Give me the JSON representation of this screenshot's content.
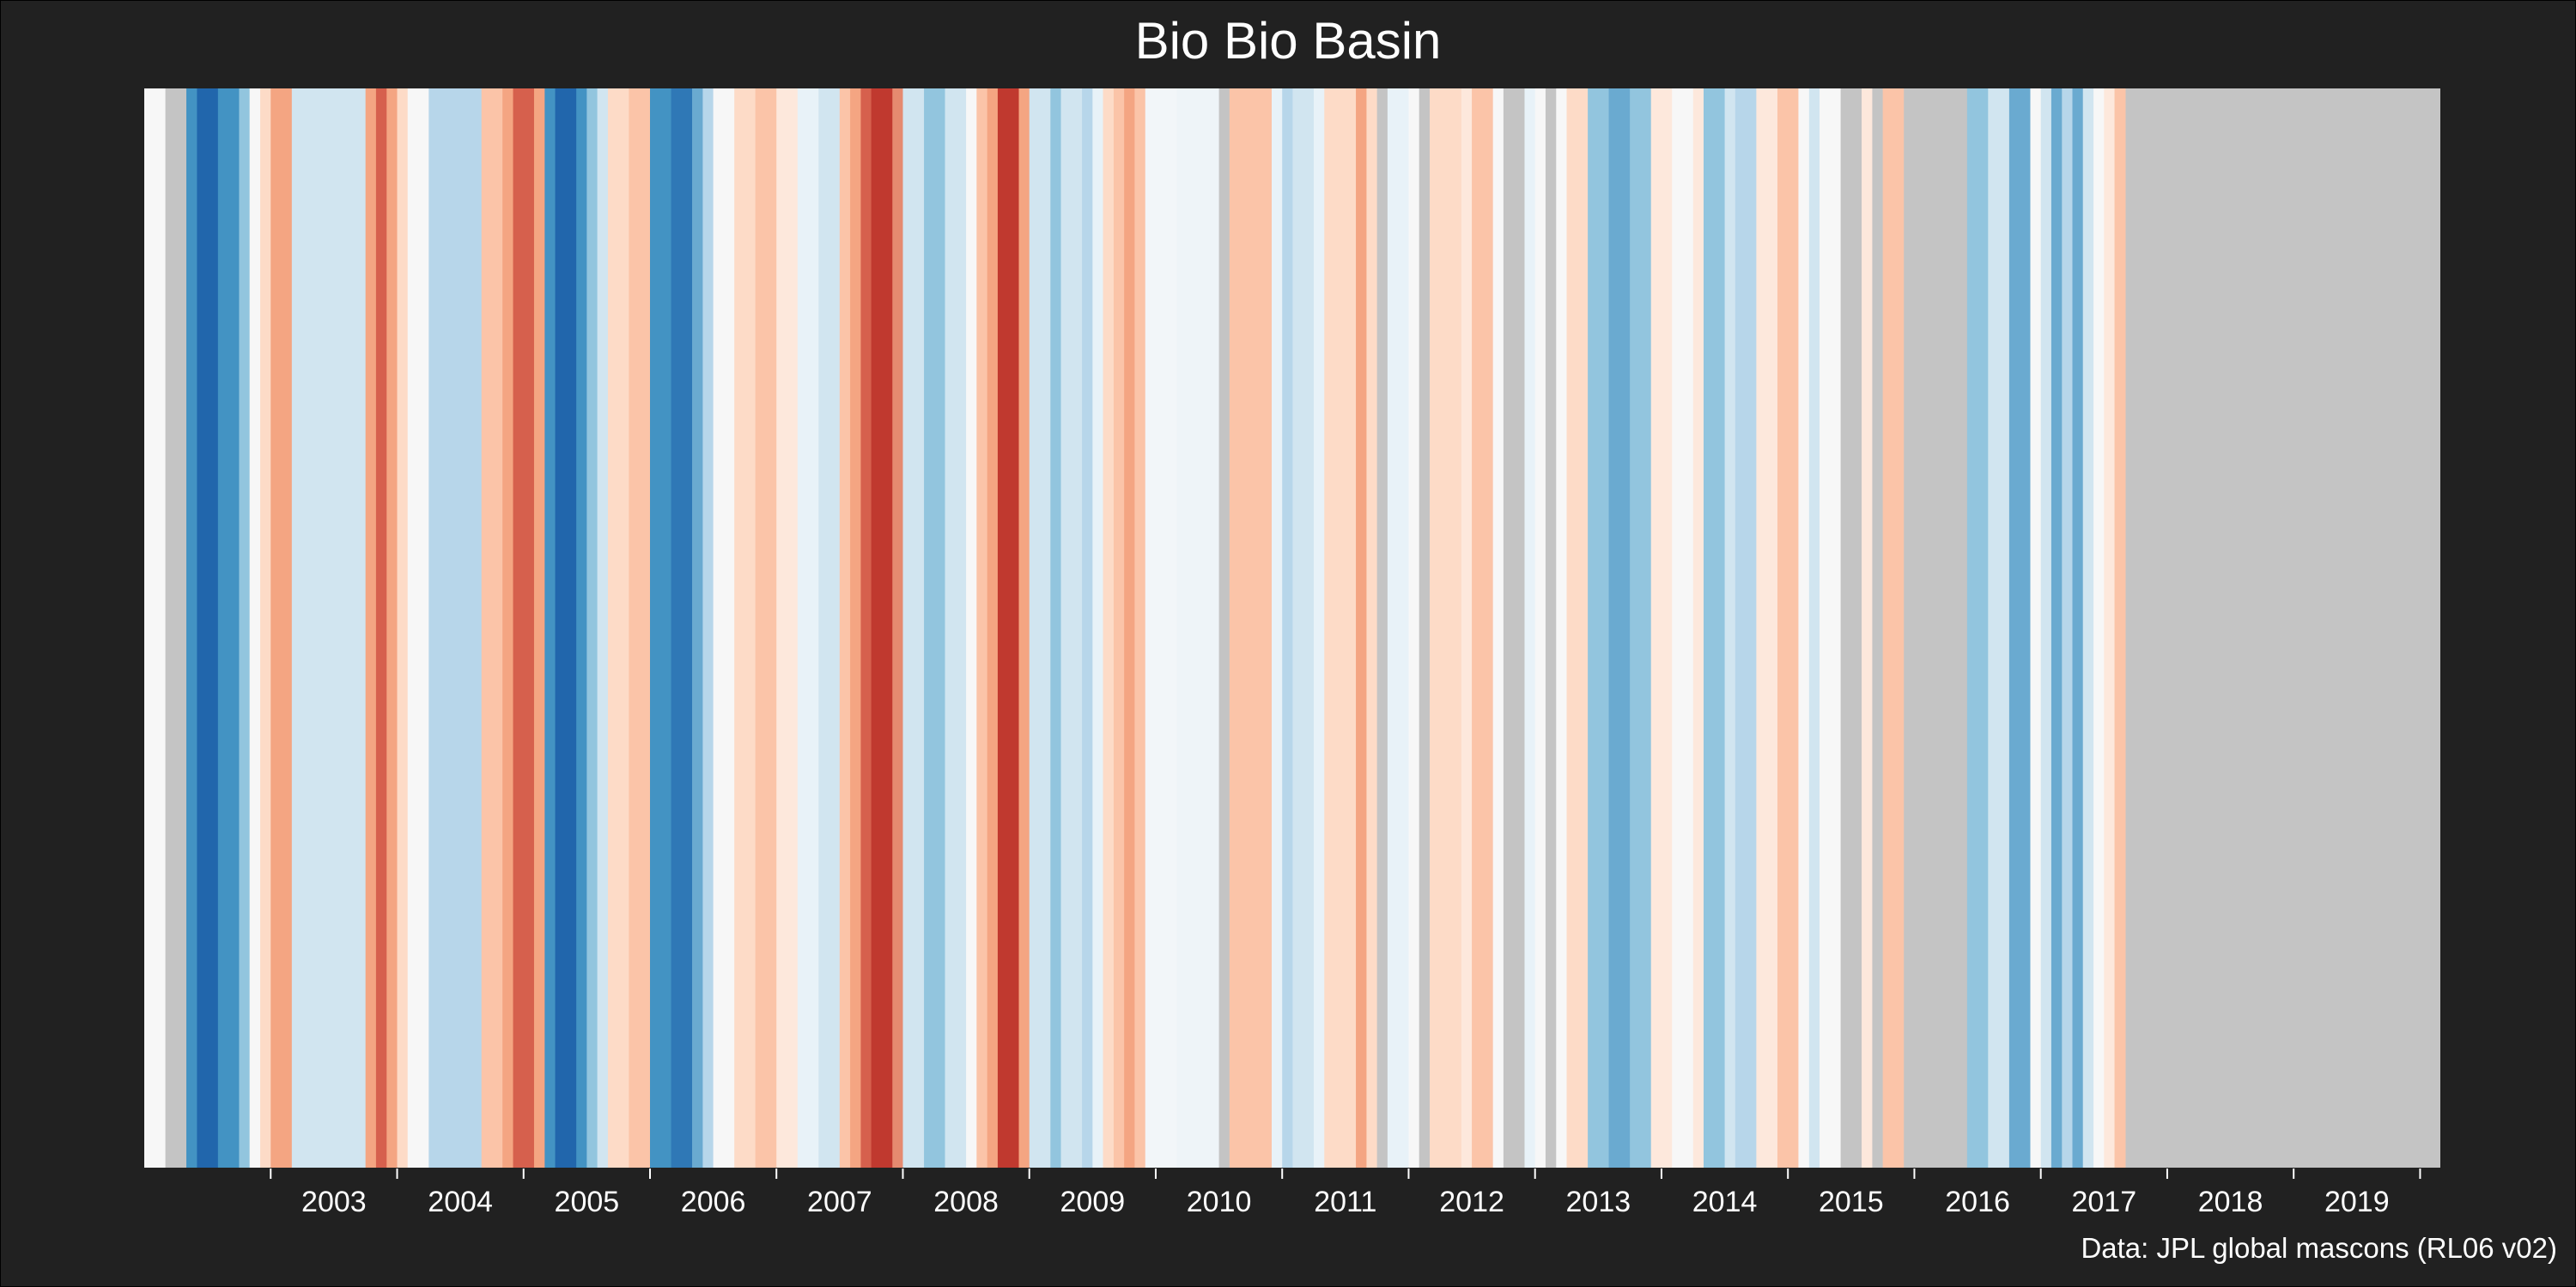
{
  "chart_data": {
    "type": "heatmap",
    "title": "Bio Bio Basin",
    "caption": "Data: JPL global mascons (RL06 v02)",
    "xlabel": "",
    "ylabel": "",
    "x_range": [
      2002.0,
      2020.16
    ],
    "x_ticks": [
      2003,
      2004,
      2005,
      2006,
      2007,
      2008,
      2009,
      2010,
      2011,
      2012,
      2013,
      2014,
      2015,
      2016,
      2017,
      2018,
      2019
    ],
    "legend": "none",
    "grid": false,
    "missing_color": "#c4c4c4",
    "palette": [
      "#08519c",
      "#2171b5",
      "#4292c6",
      "#6baed6",
      "#9ecae1",
      "#c6dbef",
      "#deebf7",
      "#f7fbff",
      "#fff5f0",
      "#fee0d2",
      "#fcbba1",
      "#fc9272",
      "#ef3b2c",
      "#cb181d",
      "#a50f15"
    ],
    "stripes": [
      {
        "start": 2002.0,
        "end": 2002.167,
        "color": "#f7f7f7"
      },
      {
        "start": 2002.167,
        "end": 2002.333,
        "color": "#c4c4c4"
      },
      {
        "start": 2002.333,
        "end": 2002.417,
        "color": "#4393c3"
      },
      {
        "start": 2002.417,
        "end": 2002.583,
        "color": "#2166ac"
      },
      {
        "start": 2002.583,
        "end": 2002.75,
        "color": "#4393c3"
      },
      {
        "start": 2002.75,
        "end": 2002.833,
        "color": "#92c5de"
      },
      {
        "start": 2002.833,
        "end": 2002.917,
        "color": "#f7f7f7"
      },
      {
        "start": 2002.917,
        "end": 2003.0,
        "color": "#fddbc7"
      },
      {
        "start": 2003.0,
        "end": 2003.167,
        "color": "#f4a582"
      },
      {
        "start": 2003.167,
        "end": 2003.333,
        "color": "#d1e5f0"
      },
      {
        "start": 2003.333,
        "end": 2003.5,
        "color": "#d1e5f0"
      },
      {
        "start": 2003.5,
        "end": 2003.75,
        "color": "#d1e5f0"
      },
      {
        "start": 2003.75,
        "end": 2003.833,
        "color": "#f4a582"
      },
      {
        "start": 2003.833,
        "end": 2003.917,
        "color": "#d6604d"
      },
      {
        "start": 2003.917,
        "end": 2004.0,
        "color": "#f4a582"
      },
      {
        "start": 2004.0,
        "end": 2004.083,
        "color": "#fddbc7"
      },
      {
        "start": 2004.083,
        "end": 2004.25,
        "color": "#f7f7f7"
      },
      {
        "start": 2004.25,
        "end": 2004.5,
        "color": "#b7d6ea"
      },
      {
        "start": 2004.5,
        "end": 2004.667,
        "color": "#b7d6ea"
      },
      {
        "start": 2004.667,
        "end": 2004.833,
        "color": "#fbc4a8"
      },
      {
        "start": 2004.833,
        "end": 2004.917,
        "color": "#f4a582"
      },
      {
        "start": 2004.917,
        "end": 2005.083,
        "color": "#d6604d"
      },
      {
        "start": 2005.083,
        "end": 2005.167,
        "color": "#f4a582"
      },
      {
        "start": 2005.167,
        "end": 2005.25,
        "color": "#4393c3"
      },
      {
        "start": 2005.25,
        "end": 2005.417,
        "color": "#2166ac"
      },
      {
        "start": 2005.417,
        "end": 2005.5,
        "color": "#4393c3"
      },
      {
        "start": 2005.5,
        "end": 2005.583,
        "color": "#92c5de"
      },
      {
        "start": 2005.583,
        "end": 2005.667,
        "color": "#d1e5f0"
      },
      {
        "start": 2005.667,
        "end": 2005.833,
        "color": "#fddbc7"
      },
      {
        "start": 2005.833,
        "end": 2006.0,
        "color": "#fbc4a8"
      },
      {
        "start": 2006.0,
        "end": 2006.167,
        "color": "#4393c3"
      },
      {
        "start": 2006.167,
        "end": 2006.333,
        "color": "#2f78b6"
      },
      {
        "start": 2006.333,
        "end": 2006.417,
        "color": "#6aaad0"
      },
      {
        "start": 2006.417,
        "end": 2006.5,
        "color": "#b7d6ea"
      },
      {
        "start": 2006.5,
        "end": 2006.667,
        "color": "#f7f7f7"
      },
      {
        "start": 2006.667,
        "end": 2006.833,
        "color": "#fddbc7"
      },
      {
        "start": 2006.833,
        "end": 2007.0,
        "color": "#fbc4a8"
      },
      {
        "start": 2007.0,
        "end": 2007.167,
        "color": "#fde8dc"
      },
      {
        "start": 2007.167,
        "end": 2007.333,
        "color": "#e8f2f8"
      },
      {
        "start": 2007.333,
        "end": 2007.5,
        "color": "#d1e5f0"
      },
      {
        "start": 2007.5,
        "end": 2007.583,
        "color": "#fbc4a8"
      },
      {
        "start": 2007.583,
        "end": 2007.667,
        "color": "#f4a582"
      },
      {
        "start": 2007.667,
        "end": 2007.75,
        "color": "#d6604d"
      },
      {
        "start": 2007.75,
        "end": 2007.917,
        "color": "#c0392f"
      },
      {
        "start": 2007.917,
        "end": 2008.0,
        "color": "#e58a70"
      },
      {
        "start": 2008.0,
        "end": 2008.167,
        "color": "#d1e5f0"
      },
      {
        "start": 2008.167,
        "end": 2008.333,
        "color": "#92c5de"
      },
      {
        "start": 2008.333,
        "end": 2008.5,
        "color": "#d1e5f0"
      },
      {
        "start": 2008.5,
        "end": 2008.583,
        "color": "#f7f7f7"
      },
      {
        "start": 2008.583,
        "end": 2008.667,
        "color": "#fbc4a8"
      },
      {
        "start": 2008.667,
        "end": 2008.75,
        "color": "#f4a582"
      },
      {
        "start": 2008.75,
        "end": 2008.917,
        "color": "#c0392f"
      },
      {
        "start": 2008.917,
        "end": 2009.0,
        "color": "#f4a582"
      },
      {
        "start": 2009.0,
        "end": 2009.167,
        "color": "#d1e5f0"
      },
      {
        "start": 2009.167,
        "end": 2009.25,
        "color": "#92c5de"
      },
      {
        "start": 2009.25,
        "end": 2009.417,
        "color": "#d1e5f0"
      },
      {
        "start": 2009.417,
        "end": 2009.5,
        "color": "#b7d6ea"
      },
      {
        "start": 2009.5,
        "end": 2009.583,
        "color": "#e8f2f8"
      },
      {
        "start": 2009.583,
        "end": 2009.667,
        "color": "#fddbc7"
      },
      {
        "start": 2009.667,
        "end": 2009.75,
        "color": "#fbc4a8"
      },
      {
        "start": 2009.75,
        "end": 2009.833,
        "color": "#f4a582"
      },
      {
        "start": 2009.833,
        "end": 2009.917,
        "color": "#fbc4a8"
      },
      {
        "start": 2009.917,
        "end": 2010.167,
        "color": "#f2f6f9"
      },
      {
        "start": 2010.167,
        "end": 2010.5,
        "color": "#eef4f8"
      },
      {
        "start": 2010.5,
        "end": 2010.583,
        "color": "#c4c4c4"
      },
      {
        "start": 2010.583,
        "end": 2010.917,
        "color": "#fbc4a8"
      },
      {
        "start": 2010.917,
        "end": 2011.0,
        "color": "#e8f2f8"
      },
      {
        "start": 2011.0,
        "end": 2011.083,
        "color": "#b7d6ea"
      },
      {
        "start": 2011.083,
        "end": 2011.25,
        "color": "#d1e5f0"
      },
      {
        "start": 2011.25,
        "end": 2011.333,
        "color": "#e8f2f8"
      },
      {
        "start": 2011.333,
        "end": 2011.583,
        "color": "#fddbc7"
      },
      {
        "start": 2011.583,
        "end": 2011.667,
        "color": "#f4a582"
      },
      {
        "start": 2011.667,
        "end": 2011.75,
        "color": "#fddbc7"
      },
      {
        "start": 2011.75,
        "end": 2011.833,
        "color": "#c4c4c4"
      },
      {
        "start": 2011.833,
        "end": 2012.0,
        "color": "#e8f2f8"
      },
      {
        "start": 2012.0,
        "end": 2012.083,
        "color": "#f7f7f7"
      },
      {
        "start": 2012.083,
        "end": 2012.167,
        "color": "#c4c4c4"
      },
      {
        "start": 2012.167,
        "end": 2012.417,
        "color": "#fddbc7"
      },
      {
        "start": 2012.417,
        "end": 2012.5,
        "color": "#fde8dc"
      },
      {
        "start": 2012.5,
        "end": 2012.667,
        "color": "#fbc4a8"
      },
      {
        "start": 2012.667,
        "end": 2012.75,
        "color": "#f7f7f7"
      },
      {
        "start": 2012.75,
        "end": 2012.917,
        "color": "#c4c4c4"
      },
      {
        "start": 2012.917,
        "end": 2013.0,
        "color": "#e8f2f8"
      },
      {
        "start": 2013.0,
        "end": 2013.083,
        "color": "#f7f7f7"
      },
      {
        "start": 2013.083,
        "end": 2013.167,
        "color": "#c4c4c4"
      },
      {
        "start": 2013.167,
        "end": 2013.25,
        "color": "#f7f7f7"
      },
      {
        "start": 2013.25,
        "end": 2013.417,
        "color": "#fddbc7"
      },
      {
        "start": 2013.417,
        "end": 2013.583,
        "color": "#92c5de"
      },
      {
        "start": 2013.583,
        "end": 2013.75,
        "color": "#6aaad0"
      },
      {
        "start": 2013.75,
        "end": 2013.917,
        "color": "#92c5de"
      },
      {
        "start": 2013.917,
        "end": 2014.083,
        "color": "#fde8dc"
      },
      {
        "start": 2014.083,
        "end": 2014.25,
        "color": "#f7f7f7"
      },
      {
        "start": 2014.25,
        "end": 2014.333,
        "color": "#fde8dc"
      },
      {
        "start": 2014.333,
        "end": 2014.5,
        "color": "#92c5de"
      },
      {
        "start": 2014.5,
        "end": 2014.583,
        "color": "#d1e5f0"
      },
      {
        "start": 2014.583,
        "end": 2014.75,
        "color": "#b7d6ea"
      },
      {
        "start": 2014.75,
        "end": 2014.917,
        "color": "#fde8dc"
      },
      {
        "start": 2014.917,
        "end": 2015.083,
        "color": "#fbc4a8"
      },
      {
        "start": 2015.083,
        "end": 2015.167,
        "color": "#f7f7f7"
      },
      {
        "start": 2015.167,
        "end": 2015.25,
        "color": "#d1e5f0"
      },
      {
        "start": 2015.25,
        "end": 2015.417,
        "color": "#f7f7f7"
      },
      {
        "start": 2015.417,
        "end": 2015.583,
        "color": "#c4c4c4"
      },
      {
        "start": 2015.583,
        "end": 2015.667,
        "color": "#fde8dc"
      },
      {
        "start": 2015.667,
        "end": 2015.75,
        "color": "#c4c4c4"
      },
      {
        "start": 2015.75,
        "end": 2015.917,
        "color": "#fbc4a8"
      },
      {
        "start": 2015.917,
        "end": 2016.417,
        "color": "#c4c4c4"
      },
      {
        "start": 2016.417,
        "end": 2016.583,
        "color": "#92c5de"
      },
      {
        "start": 2016.583,
        "end": 2016.75,
        "color": "#d1e5f0"
      },
      {
        "start": 2016.75,
        "end": 2016.917,
        "color": "#6aaad0"
      },
      {
        "start": 2016.917,
        "end": 2017.0,
        "color": "#f7f7f7"
      },
      {
        "start": 2017.0,
        "end": 2017.083,
        "color": "#d1e5f0"
      },
      {
        "start": 2017.083,
        "end": 2017.167,
        "color": "#6aaad0"
      },
      {
        "start": 2017.167,
        "end": 2017.25,
        "color": "#b7d6ea"
      },
      {
        "start": 2017.25,
        "end": 2017.333,
        "color": "#6aaad0"
      },
      {
        "start": 2017.333,
        "end": 2017.417,
        "color": "#d1e5f0"
      },
      {
        "start": 2017.417,
        "end": 2017.5,
        "color": "#f7f7f7"
      },
      {
        "start": 2017.5,
        "end": 2017.583,
        "color": "#fde8dc"
      },
      {
        "start": 2017.583,
        "end": 2017.667,
        "color": "#fbc4a8"
      }
    ]
  }
}
